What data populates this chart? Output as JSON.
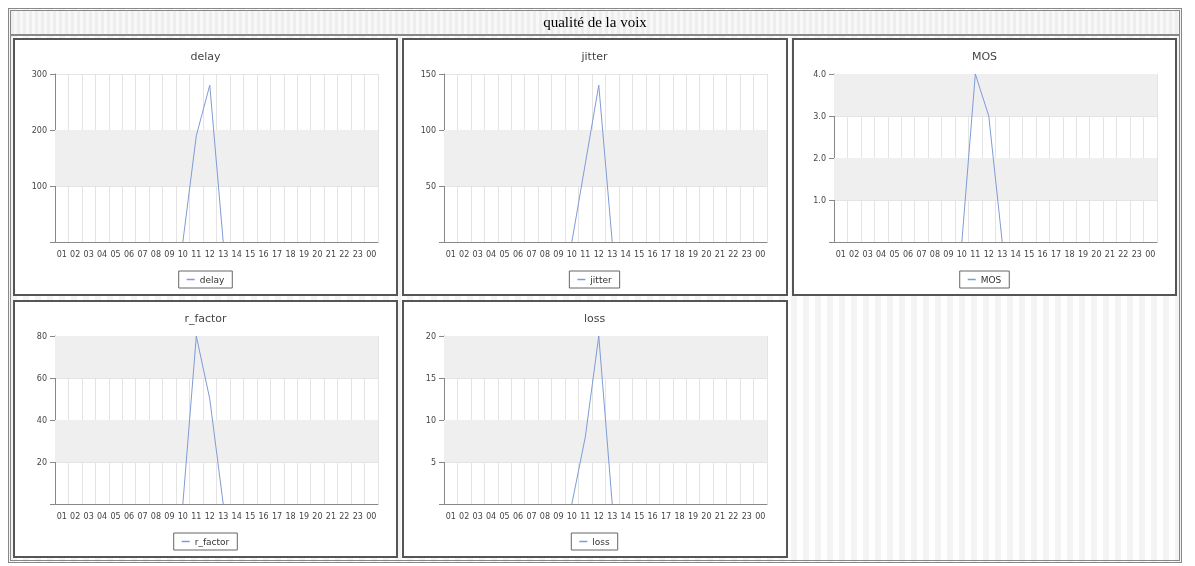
{
  "chart_data": [
    {
      "type": "line",
      "title": "delay",
      "annotations": [
        "qualité de la voix"
      ],
      "categories": [
        "01",
        "02",
        "03",
        "04",
        "05",
        "06",
        "07",
        "08",
        "09",
        "10",
        "11",
        "12",
        "13",
        "14",
        "15",
        "16",
        "17",
        "18",
        "19",
        "20",
        "21",
        "22",
        "23",
        "00"
      ],
      "series": [
        {
          "name": "delay",
          "color": "#7f9bd6",
          "values": [
            null,
            null,
            null,
            null,
            null,
            null,
            null,
            null,
            null,
            0,
            190,
            280,
            0,
            null,
            null,
            null,
            null,
            null,
            null,
            null,
            null,
            null,
            null,
            null
          ]
        }
      ],
      "ylim": [
        0,
        300
      ],
      "yticks": [
        {
          "value": 0,
          "label": null
        },
        100,
        200,
        300
      ],
      "bands": [
        {
          "axis": "y",
          "from": 100,
          "to": 200,
          "color": "#efefef"
        }
      ],
      "grid": true,
      "legend": "bottom",
      "marker": "none"
    },
    {
      "type": "line",
      "title": "jitter",
      "categories": [
        "01",
        "02",
        "03",
        "04",
        "05",
        "06",
        "07",
        "08",
        "09",
        "10",
        "11",
        "12",
        "13",
        "14",
        "15",
        "16",
        "17",
        "18",
        "19",
        "20",
        "21",
        "22",
        "23",
        "00"
      ],
      "series": [
        {
          "name": "jitter",
          "color": "#7f9bd6",
          "values": [
            null,
            null,
            null,
            null,
            null,
            null,
            null,
            null,
            null,
            0,
            70,
            140,
            0,
            null,
            null,
            null,
            null,
            null,
            null,
            null,
            null,
            null,
            null,
            null
          ]
        }
      ],
      "ylim": [
        0,
        150
      ],
      "yticks": [
        {
          "value": 0,
          "label": null
        },
        50,
        100,
        150
      ],
      "bands": [
        {
          "axis": "y",
          "from": 50,
          "to": 100,
          "color": "#efefef"
        }
      ],
      "grid": true,
      "legend": "bottom",
      "marker": "none"
    },
    {
      "type": "line",
      "title": "MOS",
      "categories": [
        "01",
        "02",
        "03",
        "04",
        "05",
        "06",
        "07",
        "08",
        "09",
        "10",
        "11",
        "12",
        "13",
        "14",
        "15",
        "16",
        "17",
        "18",
        "19",
        "20",
        "21",
        "22",
        "23",
        "00"
      ],
      "series": [
        {
          "name": "MOS",
          "color": "#7f9bd6",
          "values": [
            null,
            null,
            null,
            null,
            null,
            null,
            null,
            null,
            null,
            0,
            4.0,
            3.0,
            0,
            null,
            null,
            null,
            null,
            null,
            null,
            null,
            null,
            null,
            null,
            null
          ]
        }
      ],
      "ylim": [
        0,
        4
      ],
      "yticks": [
        {
          "value": 0,
          "label": null
        },
        {
          "value": 1,
          "label": "1.0"
        },
        {
          "value": 2,
          "label": "2.0"
        },
        {
          "value": 3,
          "label": "3.0"
        },
        {
          "value": 4,
          "label": "4.0"
        }
      ],
      "bands": [
        {
          "axis": "y",
          "from": 1,
          "to": 2,
          "color": "#efefef"
        },
        {
          "axis": "y",
          "from": 3,
          "to": 4,
          "color": "#efefef"
        }
      ],
      "grid": true,
      "legend": "bottom",
      "marker": "none"
    },
    {
      "type": "line",
      "title": "r_factor",
      "categories": [
        "01",
        "02",
        "03",
        "04",
        "05",
        "06",
        "07",
        "08",
        "09",
        "10",
        "11",
        "12",
        "13",
        "14",
        "15",
        "16",
        "17",
        "18",
        "19",
        "20",
        "21",
        "22",
        "23",
        "00"
      ],
      "series": [
        {
          "name": "r_factor",
          "color": "#7f9bd6",
          "values": [
            null,
            null,
            null,
            null,
            null,
            null,
            null,
            null,
            null,
            0,
            80,
            50,
            0,
            null,
            null,
            null,
            null,
            null,
            null,
            null,
            null,
            null,
            null,
            null
          ]
        }
      ],
      "ylim": [
        0,
        80
      ],
      "yticks": [
        {
          "value": 0,
          "label": null
        },
        20,
        40,
        60,
        80
      ],
      "bands": [
        {
          "axis": "y",
          "from": 20,
          "to": 40,
          "color": "#efefef"
        },
        {
          "axis": "y",
          "from": 60,
          "to": 80,
          "color": "#efefef"
        }
      ],
      "grid": true,
      "legend": "bottom",
      "marker": "none"
    },
    {
      "type": "line",
      "title": "loss",
      "categories": [
        "01",
        "02",
        "03",
        "04",
        "05",
        "06",
        "07",
        "08",
        "09",
        "10",
        "11",
        "12",
        "13",
        "14",
        "15",
        "16",
        "17",
        "18",
        "19",
        "20",
        "21",
        "22",
        "23",
        "00"
      ],
      "series": [
        {
          "name": "loss",
          "color": "#7f9bd6",
          "values": [
            null,
            null,
            null,
            null,
            null,
            null,
            null,
            null,
            null,
            0,
            8,
            20,
            0,
            null,
            null,
            null,
            null,
            null,
            null,
            null,
            null,
            null,
            null,
            null
          ]
        }
      ],
      "ylim": [
        0,
        20
      ],
      "yticks": [
        {
          "value": 0,
          "label": null
        },
        5,
        10,
        15,
        20
      ],
      "bands": [
        {
          "axis": "y",
          "from": 5,
          "to": 10,
          "color": "#efefef"
        },
        {
          "axis": "y",
          "from": 15,
          "to": 20,
          "color": "#efefef"
        }
      ],
      "grid": true,
      "legend": "bottom",
      "marker": "none"
    }
  ]
}
